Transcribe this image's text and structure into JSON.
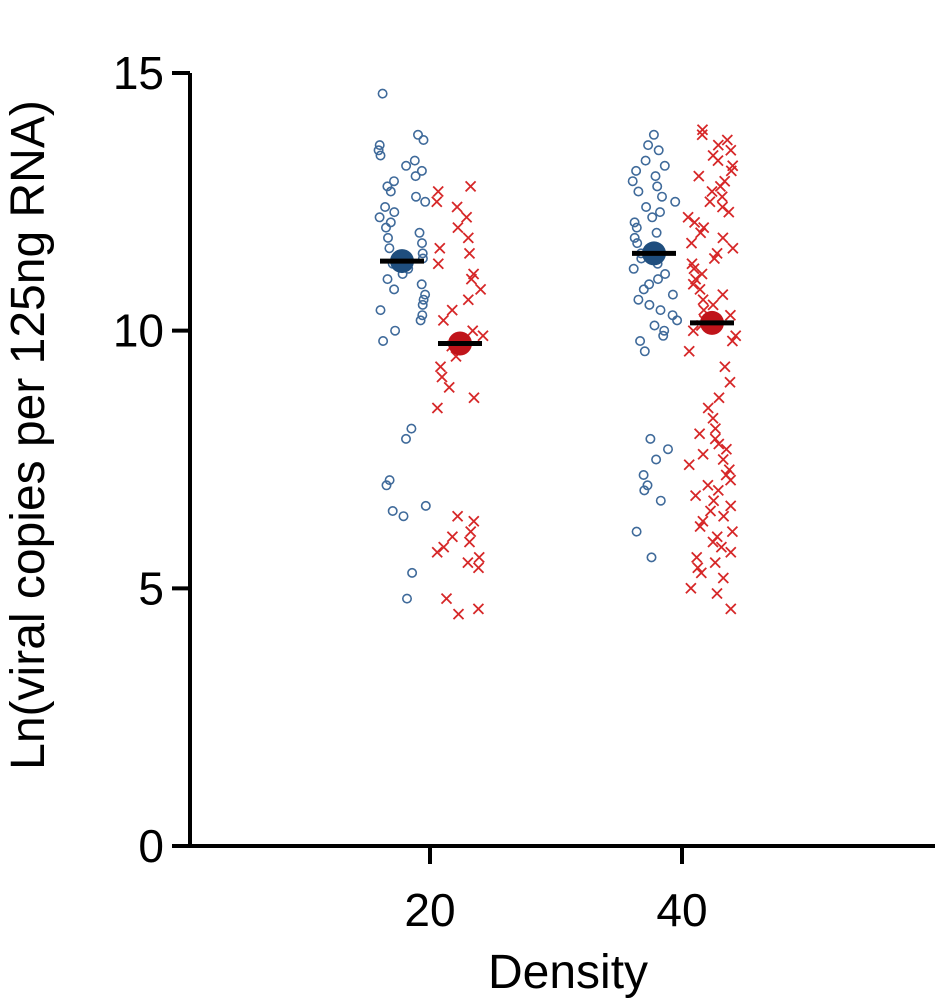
{
  "chart_data": {
    "type": "scatter",
    "xlabel": "Density",
    "ylabel": "Ln(viral copies per 125ng RNA)",
    "ylim": [
      0,
      15
    ],
    "y_ticks": [
      0,
      5,
      10,
      15
    ],
    "categories": [
      "20",
      "40"
    ],
    "grid": false,
    "legend": "none",
    "series": [
      {
        "color": "#3f6a9a",
        "marker": "circle-open",
        "mean_color": "#1f4e7e",
        "means": [
          11.35,
          11.5
        ],
        "values": [
          [
            14.6,
            13.8,
            13.7,
            13.6,
            13.5,
            13.4,
            13.3,
            13.2,
            13.1,
            13.0,
            12.9,
            12.8,
            12.7,
            12.6,
            12.5,
            12.4,
            12.3,
            12.2,
            12.1,
            12.0,
            11.9,
            11.8,
            11.7,
            11.6,
            11.5,
            11.4,
            11.3,
            11.2,
            11.1,
            11.0,
            10.9,
            10.8,
            10.7,
            10.6,
            10.5,
            10.4,
            10.3,
            10.2,
            10.0,
            9.8,
            8.1,
            7.9,
            7.1,
            7.0,
            6.6,
            6.5,
            6.4,
            5.3,
            4.8
          ],
          [
            13.8,
            13.6,
            13.5,
            13.3,
            13.2,
            13.1,
            13.0,
            12.9,
            12.8,
            12.7,
            12.6,
            12.5,
            12.4,
            12.3,
            12.2,
            12.1,
            12.0,
            11.9,
            11.8,
            11.7,
            11.6,
            11.5,
            11.4,
            11.3,
            11.2,
            11.1,
            11.0,
            10.9,
            10.8,
            10.7,
            10.6,
            10.5,
            10.4,
            10.3,
            10.2,
            10.1,
            10.0,
            9.9,
            9.8,
            9.6,
            7.9,
            7.7,
            7.5,
            7.2,
            7.0,
            6.9,
            6.7,
            6.1,
            5.6
          ]
        ]
      },
      {
        "color": "#d62728",
        "marker": "x",
        "mean_color": "#c0141a",
        "means": [
          9.75,
          10.15
        ],
        "values": [
          [
            12.8,
            12.7,
            12.5,
            12.4,
            12.2,
            12.0,
            11.8,
            11.6,
            11.5,
            11.3,
            11.1,
            11.0,
            10.8,
            10.6,
            10.4,
            10.2,
            10.0,
            9.9,
            9.7,
            9.5,
            9.3,
            9.1,
            8.9,
            8.7,
            8.5,
            6.4,
            6.3,
            6.1,
            6.0,
            5.9,
            5.8,
            5.7,
            5.6,
            5.5,
            5.4,
            4.8,
            4.6,
            4.5
          ],
          [
            13.9,
            13.8,
            13.7,
            13.6,
            13.5,
            13.4,
            13.3,
            13.2,
            13.1,
            13.0,
            12.9,
            12.8,
            12.7,
            12.6,
            12.5,
            12.4,
            12.3,
            12.2,
            12.1,
            12.0,
            11.9,
            11.8,
            11.7,
            11.6,
            11.5,
            11.4,
            11.3,
            11.2,
            11.1,
            11.0,
            10.9,
            10.8,
            10.7,
            10.6,
            10.5,
            10.4,
            10.3,
            10.2,
            10.1,
            10.0,
            9.9,
            9.8,
            9.6,
            9.3,
            9.0,
            8.7,
            8.5,
            8.3,
            8.1,
            8.0,
            7.9,
            7.8,
            7.7,
            7.6,
            7.5,
            7.4,
            7.3,
            7.2,
            7.1,
            7.0,
            6.9,
            6.8,
            6.7,
            6.6,
            6.5,
            6.4,
            6.3,
            6.2,
            6.1,
            6.0,
            5.9,
            5.8,
            5.7,
            5.6,
            5.5,
            5.4,
            5.3,
            5.2,
            5.0,
            4.9,
            4.6
          ]
        ]
      }
    ]
  }
}
